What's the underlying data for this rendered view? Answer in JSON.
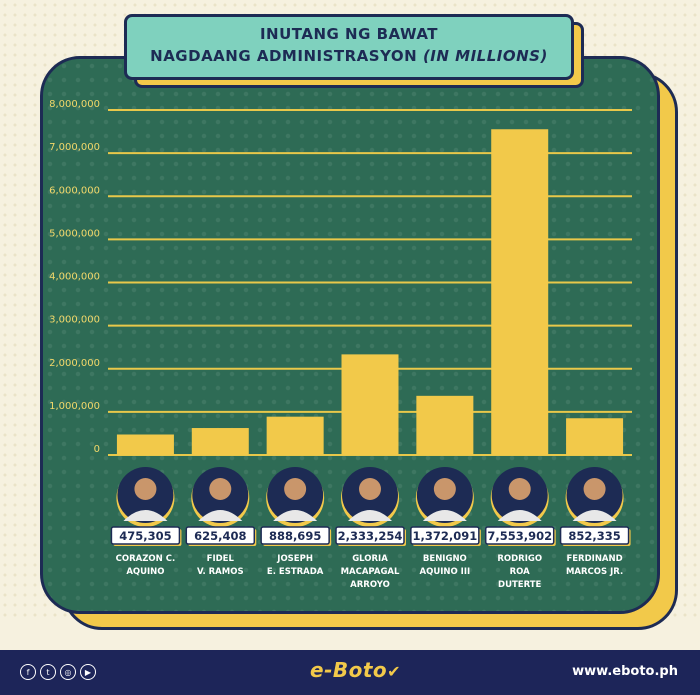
{
  "header": {
    "title_line1": "INUTANG NG BAWAT",
    "title_line2_main": "NAGDAANG ADMINISTRASYON",
    "title_line2_unit": "(IN MILLIONS)"
  },
  "chart_data": {
    "type": "bar",
    "categories": [
      "CORAZON C. AQUINO",
      "FIDEL V. RAMOS",
      "JOSEPH E. ESTRADA",
      "GLORIA MACAPAGAL ARROYO",
      "BENIGNO AQUINO III",
      "RODRIGO ROA DUTERTE",
      "FERDINAND MARCOS JR."
    ],
    "category_lines": [
      [
        "CORAZON C.",
        "AQUINO"
      ],
      [
        "FIDEL",
        "V. RAMOS"
      ],
      [
        "JOSEPH",
        "E. ESTRADA"
      ],
      [
        "GLORIA",
        "MACAPAGAL",
        "ARROYO"
      ],
      [
        "BENIGNO",
        "AQUINO III"
      ],
      [
        "RODRIGO",
        "ROA",
        "DUTERTE"
      ],
      [
        "FERDINAND",
        "MARCOS JR."
      ]
    ],
    "values": [
      475305,
      625408,
      888695,
      2333254,
      1372091,
      7553902,
      852335
    ],
    "value_labels": [
      "475,305",
      "625,408",
      "888,695",
      "2,333,254",
      "1,372,091",
      "7,553,902",
      "852,335"
    ],
    "yticks": [
      "0",
      "1,000,000",
      "2,000,000",
      "3,000,000",
      "4,000,000",
      "5,000,000",
      "6,000,000",
      "7,000,000",
      "8,000,000"
    ],
    "ylim": [
      0,
      8000000
    ],
    "grid": true,
    "bar_color": "#f2c94a",
    "grid_color": "#e8c84a"
  },
  "footer": {
    "social_icons": [
      "facebook-icon",
      "twitter-icon",
      "instagram-icon",
      "youtube-icon"
    ],
    "brand": "e-Boto",
    "website": "www.eboto.ph"
  },
  "colors": {
    "card": "#2e6b55",
    "navy": "#1d2b54",
    "accent": "#f2c94a",
    "title_bg": "#7fd1be"
  }
}
